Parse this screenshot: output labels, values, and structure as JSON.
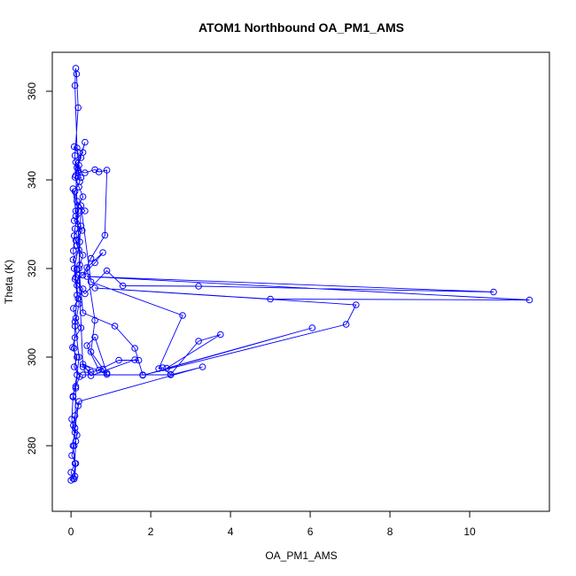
{
  "chart_data": {
    "type": "scatter",
    "mode": "lines+markers",
    "title": "ATOM1 Northbound OA_PM1_AMS",
    "xlabel": "OA_PM1_AMS",
    "ylabel": "Theta (K)",
    "xlim": [
      -0.47,
      12.0
    ],
    "ylim": [
      265.2,
      368.8
    ],
    "x_ticks": [
      0,
      2,
      4,
      6,
      8,
      10
    ],
    "y_ticks": [
      280,
      300,
      320,
      340,
      360
    ],
    "grid": false,
    "marker": "open-circle",
    "color": "#0000ff",
    "series": [
      {
        "x": [
          0.0,
          0.05,
          0.1,
          0.12,
          0.02,
          0.08,
          0.15,
          0.06,
          0.1,
          0.18,
          0.05,
          0.12,
          0.22,
          0.08,
          0.15,
          0.04,
          0.1,
          0.25,
          0.12,
          0.06,
          0.18,
          0.3,
          0.1,
          0.15,
          0.05,
          0.2,
          0.12,
          0.28,
          0.08,
          0.35,
          0.15,
          0.1,
          0.22,
          0.18,
          0.12,
          0.3,
          0.08,
          0.25,
          0.15,
          0.35,
          0.1,
          0.2,
          0.3,
          0.18,
          0.12,
          0.25,
          0.08,
          0.15,
          0.3,
          0.22,
          0.1,
          0.18,
          0.14,
          0.12,
          0.1,
          0.15,
          0.2,
          0.12,
          0.25,
          0.18,
          0.35,
          0.6,
          0.7,
          0.9,
          0.85,
          0.5,
          0.3,
          0.6,
          0.8,
          0.4,
          0.6,
          0.5,
          0.9,
          0.3,
          0.4,
          0.5,
          1.6,
          1.7,
          1.2,
          0.7,
          0.4,
          0.6,
          0.9,
          0.8,
          0.5,
          0.3,
          0.2,
          0.15,
          0.35,
          0.9,
          1.3,
          3.2,
          10.6,
          0.4,
          11.5,
          5.0,
          0.6,
          7.15,
          6.9,
          1.8,
          6.05,
          2.4,
          3.75,
          3.2,
          2.5,
          2.3,
          2.2,
          2.8,
          0.5,
          0.25,
          0.2,
          0.3,
          1.1,
          1.6,
          1.8,
          0.3,
          2.5,
          3.3,
          0.2,
          0.1,
          0.05,
          0.1,
          0.0,
          0.08,
          0.12,
          0.02,
          0.05,
          0.15,
          0.08,
          0.1,
          0.2,
          0.12,
          0.06,
          0.1,
          0.18,
          0.05,
          0.12,
          0.22,
          0.08,
          0.15,
          0.1,
          0.2,
          0.12,
          0.1
        ],
        "y": [
          272.2,
          272.6,
          273.1,
          276.0,
          277.8,
          280.0,
          282.4,
          284.6,
          286.8,
          289.0,
          291.2,
          293.4,
          295.6,
          297.8,
          300.0,
          302.2,
          304.4,
          306.6,
          308.8,
          311.0,
          313.2,
          315.4,
          317.6,
          319.8,
          322.0,
          324.2,
          326.4,
          328.6,
          330.8,
          333.0,
          335.2,
          337.4,
          339.6,
          341.8,
          344.0,
          346.2,
          347.5,
          345.0,
          342.8,
          348.5,
          340.6,
          338.4,
          336.2,
          334.0,
          331.8,
          329.6,
          327.4,
          325.2,
          323.0,
          320.8,
          345.5,
          356.3,
          363.9,
          365.2,
          361.3,
          347.2,
          343.3,
          341.0,
          340.5,
          342.2,
          341.6,
          342.3,
          341.8,
          342.2,
          327.5,
          322.3,
          318.5,
          321.3,
          323.6,
          320.2,
          308.3,
          301.2,
          296.1,
          298.4,
          297.2,
          295.8,
          299.4,
          299.3,
          299.3,
          297.1,
          302.6,
          304.5,
          296.4,
          297.3,
          296.6,
          297.8,
          318.5,
          316.2,
          314.3,
          319.5,
          316.1,
          316.0,
          314.7,
          318.2,
          312.9,
          313.1,
          315.6,
          311.8,
          307.4,
          295.9,
          306.6,
          297.5,
          305.1,
          303.6,
          296.1,
          297.6,
          297.4,
          309.4,
          317.0,
          334.2,
          320.0,
          310.0,
          307.0,
          302.0,
          296.0,
          296.0,
          296.0,
          297.8,
          290.0,
          284.0,
          280.0,
          276.0,
          274.0,
          272.5,
          281.0,
          286.0,
          291.0,
          296.0,
          302.0,
          307.0,
          312.0,
          318.0,
          324.0,
          329.0,
          333.0,
          338.0,
          333.0,
          326.0,
          320.0,
          314.0,
          308.0,
          300.0,
          293.0,
          283.0
        ]
      }
    ]
  }
}
